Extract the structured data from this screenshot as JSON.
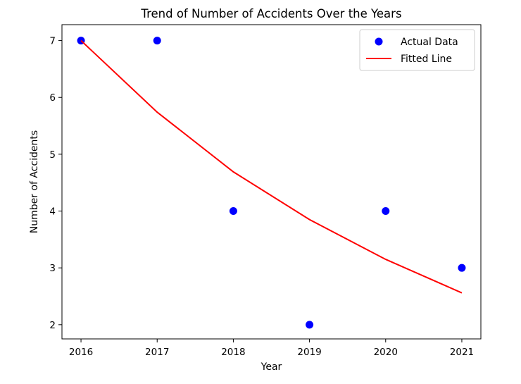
{
  "colors": {
    "scatter": "#0000ff",
    "line": "#ff0000",
    "axis": "#000000",
    "background": "#ffffff",
    "legend_border": "#cccccc"
  },
  "chart_data": {
    "type": "scatter",
    "title": "Trend of Number of Accidents Over the Years",
    "xlabel": "Year",
    "ylabel": "Number of Accidents",
    "xlim": [
      2015.75,
      2021.25
    ],
    "ylim": [
      1.75,
      7.28
    ],
    "xticks": [
      2016,
      2017,
      2018,
      2019,
      2020,
      2021
    ],
    "yticks": [
      2,
      3,
      4,
      5,
      6,
      7
    ],
    "grid": false,
    "legend_position": "top-right",
    "series": [
      {
        "name": "Actual Data",
        "kind": "scatter",
        "x": [
          2016,
          2017,
          2018,
          2019,
          2020,
          2021
        ],
        "y": [
          7,
          7,
          4,
          2,
          4,
          3
        ]
      },
      {
        "name": "Fitted Line",
        "kind": "line",
        "x": [
          2016,
          2017,
          2018,
          2019,
          2020,
          2021
        ],
        "y": [
          7.0,
          5.74,
          4.69,
          3.85,
          3.15,
          2.56
        ]
      }
    ]
  }
}
